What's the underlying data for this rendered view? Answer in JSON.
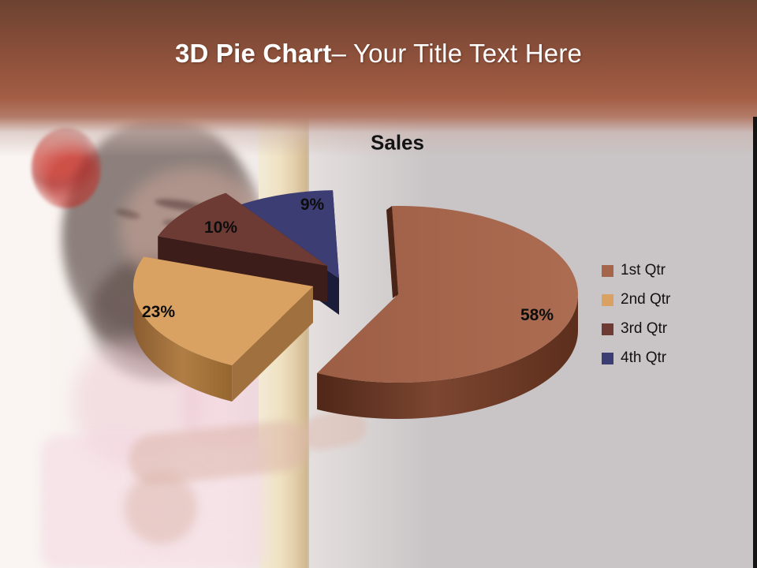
{
  "slide": {
    "title_bold": "3D Pie Chart",
    "title_rest": "– Your Title Text Here"
  },
  "theme": {
    "header_brown_dark": "#6b4330",
    "header_brown": "#a05e44",
    "background_gray": "#c9c5c6",
    "title_color": "#ffffff"
  },
  "chart_data": {
    "type": "pie",
    "title": "Sales",
    "labels": [
      "1st Qtr",
      "2nd Qtr",
      "3rd Qtr",
      "4th Qtr"
    ],
    "values": [
      58,
      23,
      10,
      9
    ],
    "value_labels": [
      "58%",
      "23%",
      "10%",
      "9%"
    ],
    "colors_top": [
      "#a5654b",
      "#d9a262",
      "#6d3a34",
      "#3c3d72"
    ],
    "colors_side": [
      "#63321f",
      "#a0703e",
      "#3c1d1a",
      "#1b1c3a"
    ],
    "exploded": [
      false,
      true,
      true,
      true
    ],
    "effect": "3d",
    "start_angle_deg": -2,
    "legend_position": "right"
  }
}
